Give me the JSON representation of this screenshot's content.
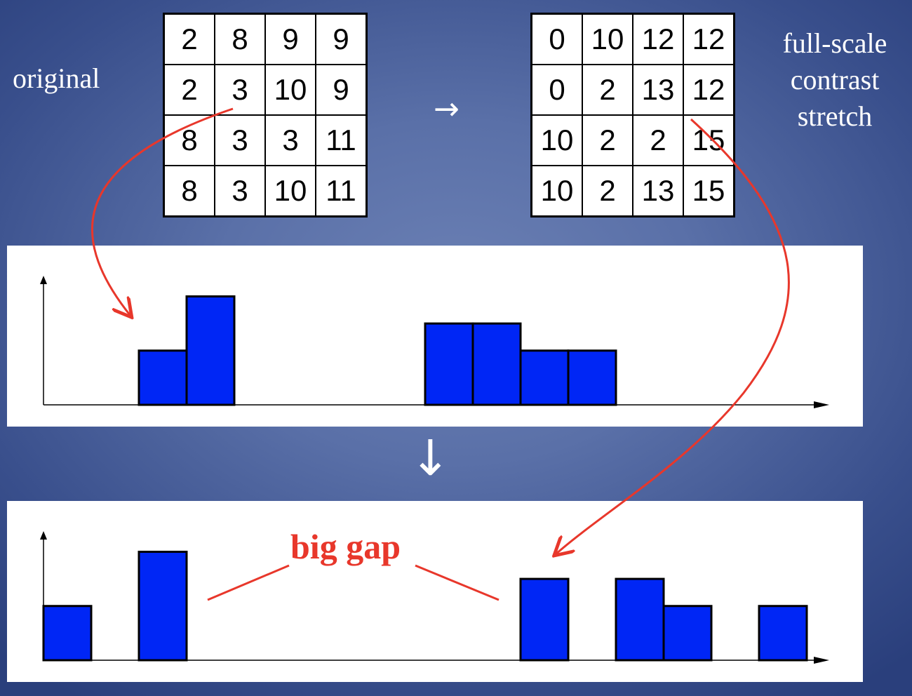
{
  "labels": {
    "original": "original",
    "full_scale_line1": "full-scale",
    "full_scale_line2": "contrast",
    "full_scale_line3": "stretch",
    "right_arrow": "→",
    "down_arrow": "↓",
    "big_gap": "big gap"
  },
  "grids": {
    "original": [
      [
        2,
        8,
        9,
        9
      ],
      [
        2,
        3,
        10,
        9
      ],
      [
        8,
        3,
        3,
        11
      ],
      [
        8,
        3,
        10,
        11
      ]
    ],
    "stretched": [
      [
        0,
        10,
        12,
        12
      ],
      [
        0,
        2,
        13,
        12
      ],
      [
        10,
        2,
        2,
        15
      ],
      [
        10,
        2,
        13,
        15
      ]
    ]
  },
  "colors": {
    "bar": "#0026f5",
    "annotation": "#e8372b"
  },
  "chart_data": [
    {
      "type": "bar",
      "name": "histogram-original",
      "x": [
        2,
        3,
        8,
        9,
        10,
        11
      ],
      "values": [
        2,
        4,
        3,
        3,
        2,
        2
      ],
      "xlim": [
        0,
        16
      ],
      "ylim": [
        0,
        4.4
      ]
    },
    {
      "type": "bar",
      "name": "histogram-stretched",
      "x": [
        0,
        2,
        10,
        12,
        13,
        15
      ],
      "values": [
        2,
        4,
        3,
        3,
        2,
        2
      ],
      "xlim": [
        0,
        16
      ],
      "ylim": [
        0,
        4.4
      ]
    }
  ]
}
